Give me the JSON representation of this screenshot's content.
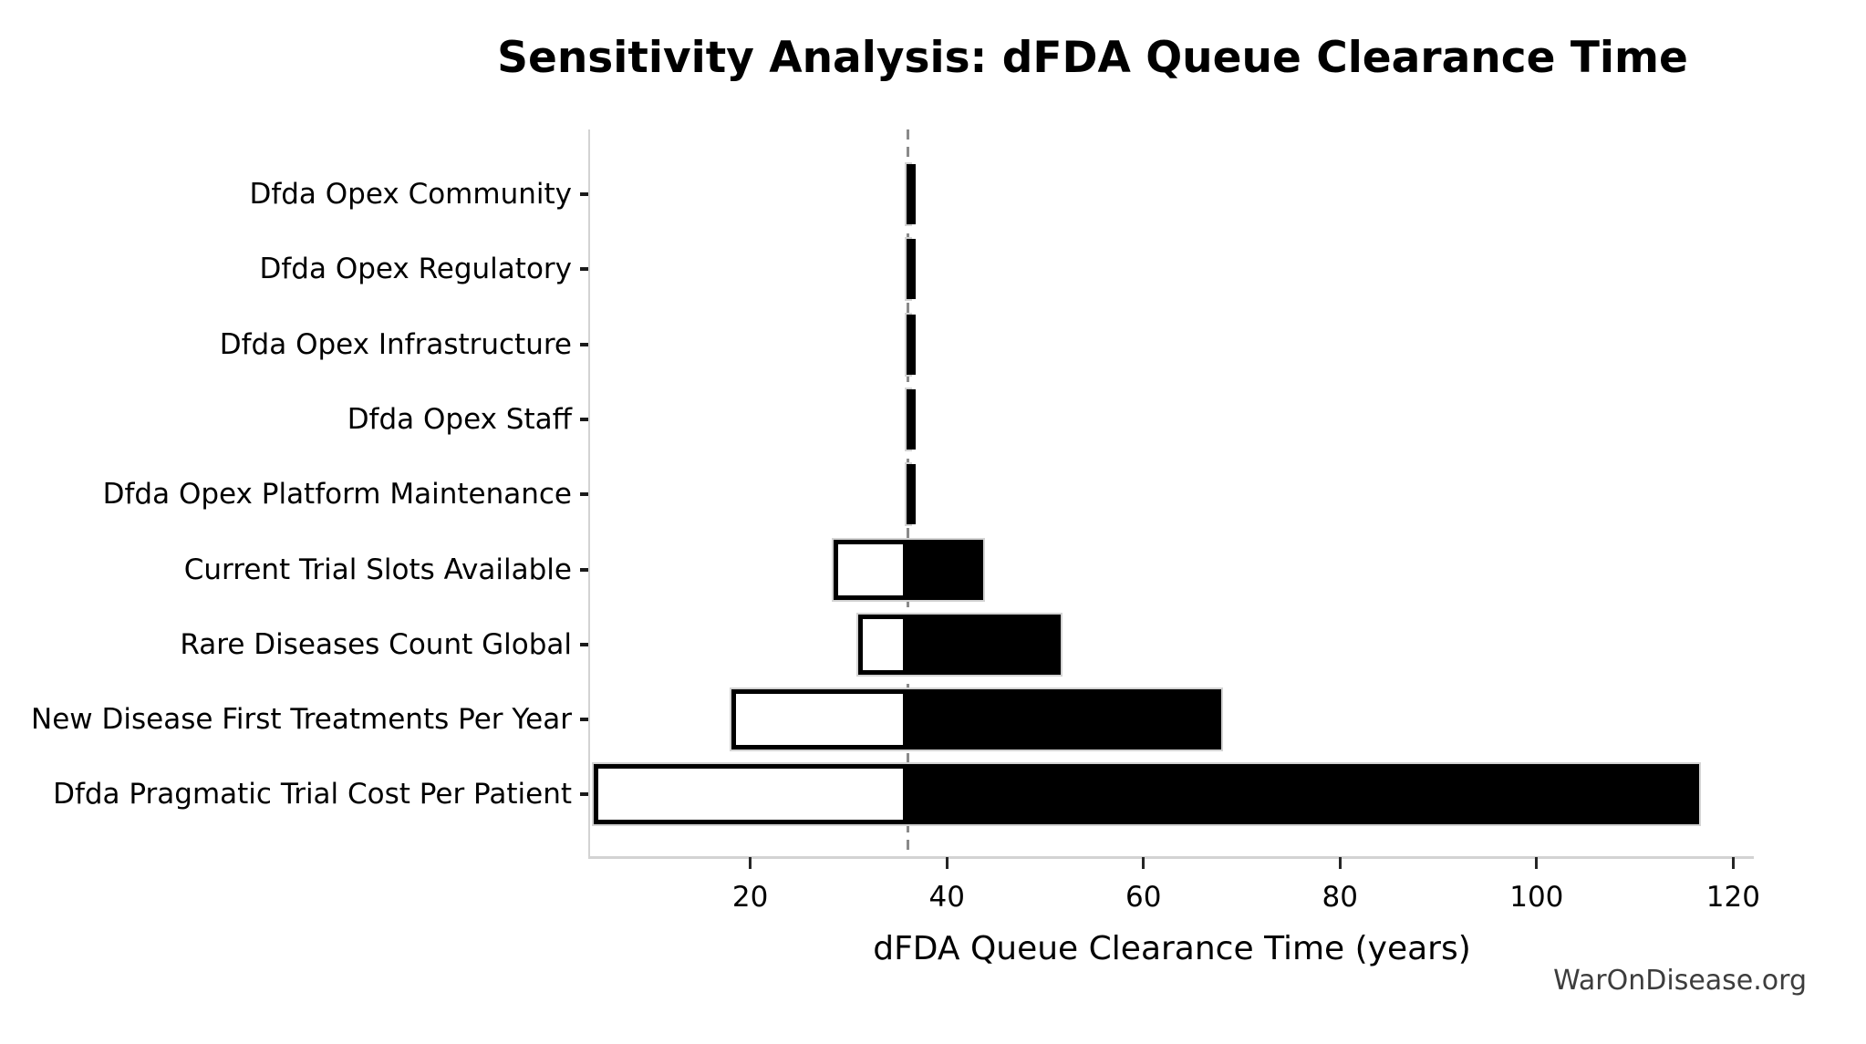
{
  "title": "Sensitivity Analysis: dFDA Queue Clearance Time",
  "watermark": "WarOnDisease.org",
  "chart_data": {
    "type": "bar",
    "subtype": "tornado-sensitivity",
    "orientation": "horizontal",
    "title": "Sensitivity Analysis: dFDA Queue Clearance Time",
    "xlabel": "dFDA Queue Clearance Time (years)",
    "ylabel": "",
    "baseline": 36,
    "xlim": [
      3.7,
      122.1
    ],
    "xticks": [
      20,
      40,
      60,
      80,
      100,
      120
    ],
    "grid": false,
    "legend": "none",
    "categories": [
      "Dfda Opex Community",
      "Dfda Opex Regulatory",
      "Dfda Opex Infrastructure",
      "Dfda Opex Staff",
      "Dfda Opex Platform Maintenance",
      "Current Trial Slots Available",
      "Rare Diseases Count Global",
      "New Disease First Treatments Per Year",
      "Dfda Pragmatic Trial Cost Per Patient"
    ],
    "series": [
      {
        "name": "low_value",
        "values": [
          35.7,
          35.7,
          35.7,
          35.7,
          35.7,
          28.3,
          30.8,
          17.9,
          3.9
        ]
      },
      {
        "name": "high_value",
        "values": [
          36.5,
          36.5,
          36.5,
          36.5,
          36.5,
          43.9,
          51.8,
          68.1,
          116.7
        ]
      }
    ],
    "colors": {
      "bar_high_fill": "#000000",
      "bar_low_fill": "#ffffff",
      "bar_low_edge": "#000000",
      "bar_range_outline": "#d3d3d3",
      "baseline_line": "#8a8a8a",
      "spine": "#d3d3d3",
      "tick": "#262626",
      "text": "#000000",
      "watermark": "#3d3d3d"
    }
  }
}
